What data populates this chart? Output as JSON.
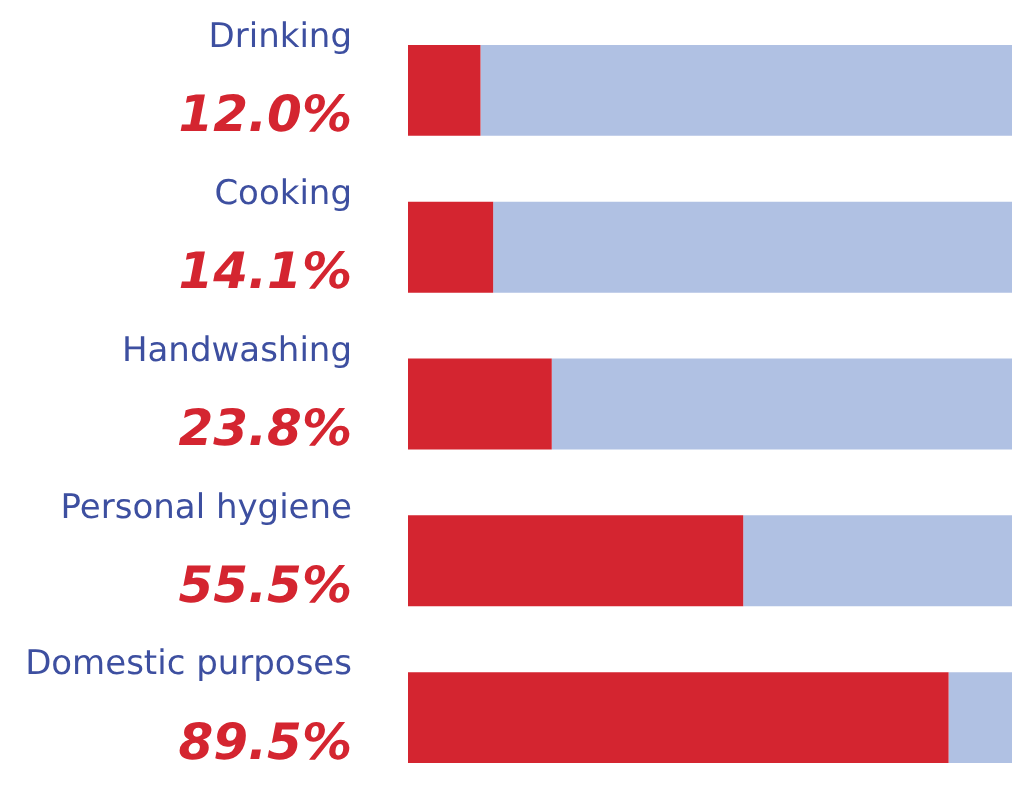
{
  "chart_data": {
    "type": "bar",
    "orientation": "horizontal",
    "stacked": true,
    "categories": [
      "Drinking",
      "Cooking",
      "Handwashing",
      "Personal hygiene",
      "Domestic purposes"
    ],
    "series": [
      {
        "color": "#d42530",
        "values": [
          12.0,
          14.1,
          23.8,
          55.5,
          89.5
        ],
        "value_labels": [
          "12.0%",
          "14.1%",
          "23.8%",
          "55.5%",
          "89.5%"
        ]
      },
      {
        "color": "#b0c1e3",
        "values": [
          88.0,
          85.9,
          76.2,
          44.5,
          10.5
        ]
      }
    ],
    "xlim": [
      0,
      100
    ],
    "tick_labels": false
  }
}
